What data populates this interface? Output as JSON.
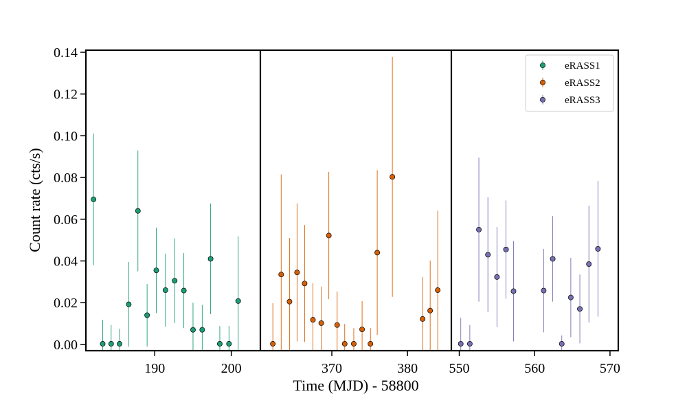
{
  "chart_data": {
    "type": "scatter",
    "ylabel": "Count rate (cts/s)",
    "xlabel": "Time (MJD) - 58800",
    "ylim": [
      -0.003,
      0.141
    ],
    "yticks": [
      0.0,
      0.02,
      0.04,
      0.06,
      0.08,
      0.1,
      0.12,
      0.14
    ],
    "ytick_labels": [
      "0.00",
      "0.02",
      "0.04",
      "0.06",
      "0.08",
      "0.10",
      "0.12",
      "0.14"
    ],
    "grid": false,
    "legend_position": "top-right",
    "panels": [
      {
        "xlim": [
          181,
          203.8
        ],
        "xticks": [
          190,
          200
        ],
        "xtick_labels": [
          "190",
          "200"
        ],
        "series": [
          {
            "name": "eRASS1",
            "color": "#1b9e77",
            "points": [
              {
                "x": 182.0,
                "y": 0.0695,
                "err": 0.0315
              },
              {
                "x": 183.2,
                "y": 0.0003,
                "err": 0.0115
              },
              {
                "x": 184.3,
                "y": 0.0003,
                "err": 0.009
              },
              {
                "x": 185.4,
                "y": 0.0003,
                "err": 0.0072
              },
              {
                "x": 186.6,
                "y": 0.0192,
                "err": 0.0203
              },
              {
                "x": 187.8,
                "y": 0.064,
                "err": 0.029
              },
              {
                "x": 189.0,
                "y": 0.014,
                "err": 0.015
              },
              {
                "x": 190.2,
                "y": 0.0355,
                "err": 0.0205
              },
              {
                "x": 191.4,
                "y": 0.026,
                "err": 0.0175
              },
              {
                "x": 192.6,
                "y": 0.0305,
                "err": 0.0203
              },
              {
                "x": 193.8,
                "y": 0.0258,
                "err": 0.018
              },
              {
                "x": 195.0,
                "y": 0.007,
                "err": 0.013
              },
              {
                "x": 196.2,
                "y": 0.007,
                "err": 0.012
              },
              {
                "x": 197.3,
                "y": 0.041,
                "err": 0.0265
              },
              {
                "x": 198.5,
                "y": 0.0003,
                "err": 0.0085
              },
              {
                "x": 199.7,
                "y": 0.0003,
                "err": 0.0085
              },
              {
                "x": 200.9,
                "y": 0.0208,
                "err": 0.031
              }
            ]
          }
        ]
      },
      {
        "xlim": [
          360.55,
          385.8
        ],
        "xticks": [
          370,
          380
        ],
        "xtick_labels": [
          "370",
          "380"
        ],
        "series": [
          {
            "name": "eRASS2",
            "color": "#d95f02",
            "points": [
              {
                "x": 362.2,
                "y": 0.0003,
                "err": 0.0195
              },
              {
                "x": 363.3,
                "y": 0.0335,
                "err": 0.048
              },
              {
                "x": 364.4,
                "y": 0.0205,
                "err": 0.0305
              },
              {
                "x": 365.4,
                "y": 0.0345,
                "err": 0.033
              },
              {
                "x": 366.4,
                "y": 0.0292,
                "err": 0.028
              },
              {
                "x": 367.5,
                "y": 0.0118,
                "err": 0.0175
              },
              {
                "x": 368.6,
                "y": 0.0102,
                "err": 0.0175
              },
              {
                "x": 369.6,
                "y": 0.0522,
                "err": 0.0305
              },
              {
                "x": 370.7,
                "y": 0.0093,
                "err": 0.016
              },
              {
                "x": 371.7,
                "y": 0.0003,
                "err": 0.0095
              },
              {
                "x": 372.9,
                "y": 0.0003,
                "err": 0.0075
              },
              {
                "x": 374.0,
                "y": 0.0072,
                "err": 0.0135
              },
              {
                "x": 375.1,
                "y": 0.0003,
                "err": 0.0075
              },
              {
                "x": 376.0,
                "y": 0.044,
                "err": 0.0395
              },
              {
                "x": 378.0,
                "y": 0.0803,
                "err": 0.0575
              },
              {
                "x": 382.0,
                "y": 0.0122,
                "err": 0.02
              },
              {
                "x": 383.0,
                "y": 0.0162,
                "err": 0.024
              },
              {
                "x": 384.0,
                "y": 0.026,
                "err": 0.038
              }
            ]
          }
        ]
      },
      {
        "xlim": [
          548.95,
          571.1
        ],
        "xticks": [
          550,
          560,
          570
        ],
        "xtick_labels": [
          "550",
          "560",
          "570"
        ],
        "series": [
          {
            "name": "eRASS3",
            "color": "#7570b3",
            "points": [
              {
                "x": 550.2,
                "y": 0.0003,
                "err": 0.0125
              },
              {
                "x": 551.4,
                "y": 0.0003,
                "err": 0.009
              },
              {
                "x": 552.6,
                "y": 0.055,
                "err": 0.0345
              },
              {
                "x": 553.8,
                "y": 0.043,
                "err": 0.0275
              },
              {
                "x": 555.0,
                "y": 0.0323,
                "err": 0.024
              },
              {
                "x": 556.2,
                "y": 0.0455,
                "err": 0.0235
              },
              {
                "x": 557.2,
                "y": 0.0255,
                "err": 0.024
              },
              {
                "x": 561.2,
                "y": 0.0258,
                "err": 0.02
              },
              {
                "x": 562.4,
                "y": 0.041,
                "err": 0.0205
              },
              {
                "x": 563.6,
                "y": 0.0003,
                "err": 0.004
              },
              {
                "x": 564.8,
                "y": 0.0225,
                "err": 0.019
              },
              {
                "x": 566.0,
                "y": 0.017,
                "err": 0.0165
              },
              {
                "x": 567.2,
                "y": 0.0385,
                "err": 0.028
              },
              {
                "x": 568.4,
                "y": 0.0458,
                "err": 0.0325
              }
            ]
          }
        ]
      }
    ],
    "legend": [
      {
        "name": "eRASS1",
        "color": "#1b9e77"
      },
      {
        "name": "eRASS2",
        "color": "#d95f02"
      },
      {
        "name": "eRASS3",
        "color": "#7570b3"
      }
    ]
  }
}
